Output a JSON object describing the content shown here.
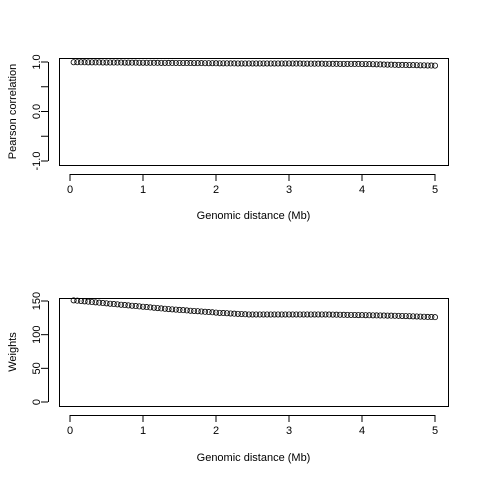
{
  "chart_data": [
    {
      "type": "scatter",
      "title": "",
      "xlabel": "Genomic distance (Mb)",
      "ylabel": "Pearson correlation",
      "xlim": [
        0,
        5
      ],
      "ylim": [
        -1.0,
        1.0
      ],
      "x_ticks": [
        0,
        1,
        2,
        3,
        4,
        5
      ],
      "x_tick_labels": [
        "0",
        "1",
        "2",
        "3",
        "4",
        "5"
      ],
      "y_ticks": [
        -1.0,
        -0.5,
        0.0,
        0.5,
        1.0
      ],
      "y_tick_labels": [
        "-1.0",
        "",
        "0.0",
        "",
        "1.0"
      ],
      "grid": false,
      "series": [
        {
          "x": [
            0.05,
            0.1,
            0.15,
            0.2,
            0.25,
            0.3,
            0.35,
            0.4,
            0.45,
            0.5,
            0.55,
            0.6,
            0.65,
            0.7,
            0.75,
            0.8,
            0.85,
            0.9,
            0.95,
            1.0,
            1.05,
            1.1,
            1.15,
            1.2,
            1.25,
            1.3,
            1.35,
            1.4,
            1.45,
            1.5,
            1.55,
            1.6,
            1.65,
            1.7,
            1.75,
            1.8,
            1.85,
            1.9,
            1.95,
            2.0,
            2.05,
            2.1,
            2.15,
            2.2,
            2.25,
            2.3,
            2.35,
            2.4,
            2.45,
            2.5,
            2.55,
            2.6,
            2.65,
            2.7,
            2.75,
            2.8,
            2.85,
            2.9,
            2.95,
            3.0,
            3.05,
            3.1,
            3.15,
            3.2,
            3.25,
            3.3,
            3.35,
            3.4,
            3.45,
            3.5,
            3.55,
            3.6,
            3.65,
            3.7,
            3.75,
            3.8,
            3.85,
            3.9,
            3.95,
            4.0,
            4.05,
            4.1,
            4.15,
            4.2,
            4.25,
            4.3,
            4.35,
            4.4,
            4.45,
            4.5,
            4.55,
            4.6,
            4.65,
            4.7,
            4.75,
            4.8,
            4.85,
            4.9,
            4.95,
            5.0
          ],
          "y": [
            0.995,
            0.995,
            0.994,
            0.994,
            0.993,
            0.993,
            0.992,
            0.992,
            0.991,
            0.991,
            0.99,
            0.99,
            0.989,
            0.989,
            0.988,
            0.988,
            0.987,
            0.987,
            0.986,
            0.986,
            0.985,
            0.985,
            0.984,
            0.984,
            0.983,
            0.983,
            0.982,
            0.982,
            0.981,
            0.981,
            0.98,
            0.979,
            0.979,
            0.978,
            0.977,
            0.977,
            0.976,
            0.975,
            0.975,
            0.974,
            0.973,
            0.973,
            0.972,
            0.971,
            0.971,
            0.97,
            0.97,
            0.97,
            0.97,
            0.97,
            0.97,
            0.97,
            0.97,
            0.97,
            0.97,
            0.97,
            0.97,
            0.97,
            0.97,
            0.97,
            0.97,
            0.969,
            0.969,
            0.968,
            0.968,
            0.967,
            0.967,
            0.966,
            0.966,
            0.965,
            0.965,
            0.964,
            0.964,
            0.963,
            0.963,
            0.962,
            0.962,
            0.961,
            0.961,
            0.96,
            0.958,
            0.956,
            0.955,
            0.953,
            0.951,
            0.949,
            0.947,
            0.946,
            0.944,
            0.942,
            0.941,
            0.939,
            0.938,
            0.936,
            0.935,
            0.933,
            0.932,
            0.93,
            0.929,
            0.927
          ]
        }
      ]
    },
    {
      "type": "scatter",
      "title": "",
      "xlabel": "Genomic distance (Mb)",
      "ylabel": "Weights",
      "xlim": [
        0,
        5
      ],
      "ylim": [
        0,
        155
      ],
      "x_ticks": [
        0,
        1,
        2,
        3,
        4,
        5
      ],
      "x_tick_labels": [
        "0",
        "1",
        "2",
        "3",
        "4",
        "5"
      ],
      "y_ticks": [
        0,
        50,
        100,
        150
      ],
      "y_tick_labels": [
        "0",
        "50",
        "100",
        "150"
      ],
      "grid": false,
      "series": [
        {
          "x": [
            0.05,
            0.1,
            0.15,
            0.2,
            0.25,
            0.3,
            0.35,
            0.4,
            0.45,
            0.5,
            0.55,
            0.6,
            0.65,
            0.7,
            0.75,
            0.8,
            0.85,
            0.9,
            0.95,
            1.0,
            1.05,
            1.1,
            1.15,
            1.2,
            1.25,
            1.3,
            1.35,
            1.4,
            1.45,
            1.5,
            1.55,
            1.6,
            1.65,
            1.7,
            1.75,
            1.8,
            1.85,
            1.9,
            1.95,
            2.0,
            2.05,
            2.1,
            2.15,
            2.2,
            2.25,
            2.3,
            2.35,
            2.4,
            2.45,
            2.5,
            2.55,
            2.6,
            2.65,
            2.7,
            2.75,
            2.8,
            2.85,
            2.9,
            2.95,
            3.0,
            3.05,
            3.1,
            3.15,
            3.2,
            3.25,
            3.3,
            3.35,
            3.4,
            3.45,
            3.5,
            3.55,
            3.6,
            3.65,
            3.7,
            3.75,
            3.8,
            3.85,
            3.9,
            3.95,
            4.0,
            4.05,
            4.1,
            4.15,
            4.2,
            4.25,
            4.3,
            4.35,
            4.4,
            4.45,
            4.5,
            4.55,
            4.6,
            4.65,
            4.7,
            4.75,
            4.8,
            4.85,
            4.9,
            4.95,
            5.0
          ],
          "y": [
            151.0,
            150.5,
            150.0,
            149.5,
            149.0,
            148.5,
            148.0,
            147.5,
            147.0,
            146.5,
            146.0,
            145.5,
            145.0,
            144.5,
            144.0,
            143.5,
            143.0,
            142.5,
            142.0,
            141.5,
            141.0,
            140.5,
            140.0,
            139.5,
            139.0,
            138.5,
            138.0,
            137.6,
            137.2,
            136.8,
            136.4,
            136.0,
            135.6,
            135.2,
            134.8,
            134.4,
            134.0,
            133.6,
            133.2,
            132.8,
            132.4,
            132.1,
            131.8,
            131.5,
            131.2,
            130.9,
            130.6,
            130.3,
            130.0,
            130.0,
            130.0,
            130.0,
            130.0,
            130.0,
            130.0,
            130.0,
            130.0,
            130.0,
            130.0,
            130.0,
            130.0,
            130.0,
            130.0,
            130.0,
            130.0,
            130.0,
            130.0,
            130.0,
            130.0,
            130.0,
            129.9,
            129.8,
            129.7,
            129.6,
            129.5,
            129.4,
            129.3,
            129.2,
            129.1,
            129.0,
            128.9,
            128.8,
            128.7,
            128.6,
            128.5,
            128.4,
            128.3,
            128.2,
            128.1,
            128.0,
            127.8,
            127.6,
            127.4,
            127.2,
            127.0,
            126.8,
            126.6,
            126.4,
            126.2,
            126.0
          ]
        }
      ]
    }
  ]
}
